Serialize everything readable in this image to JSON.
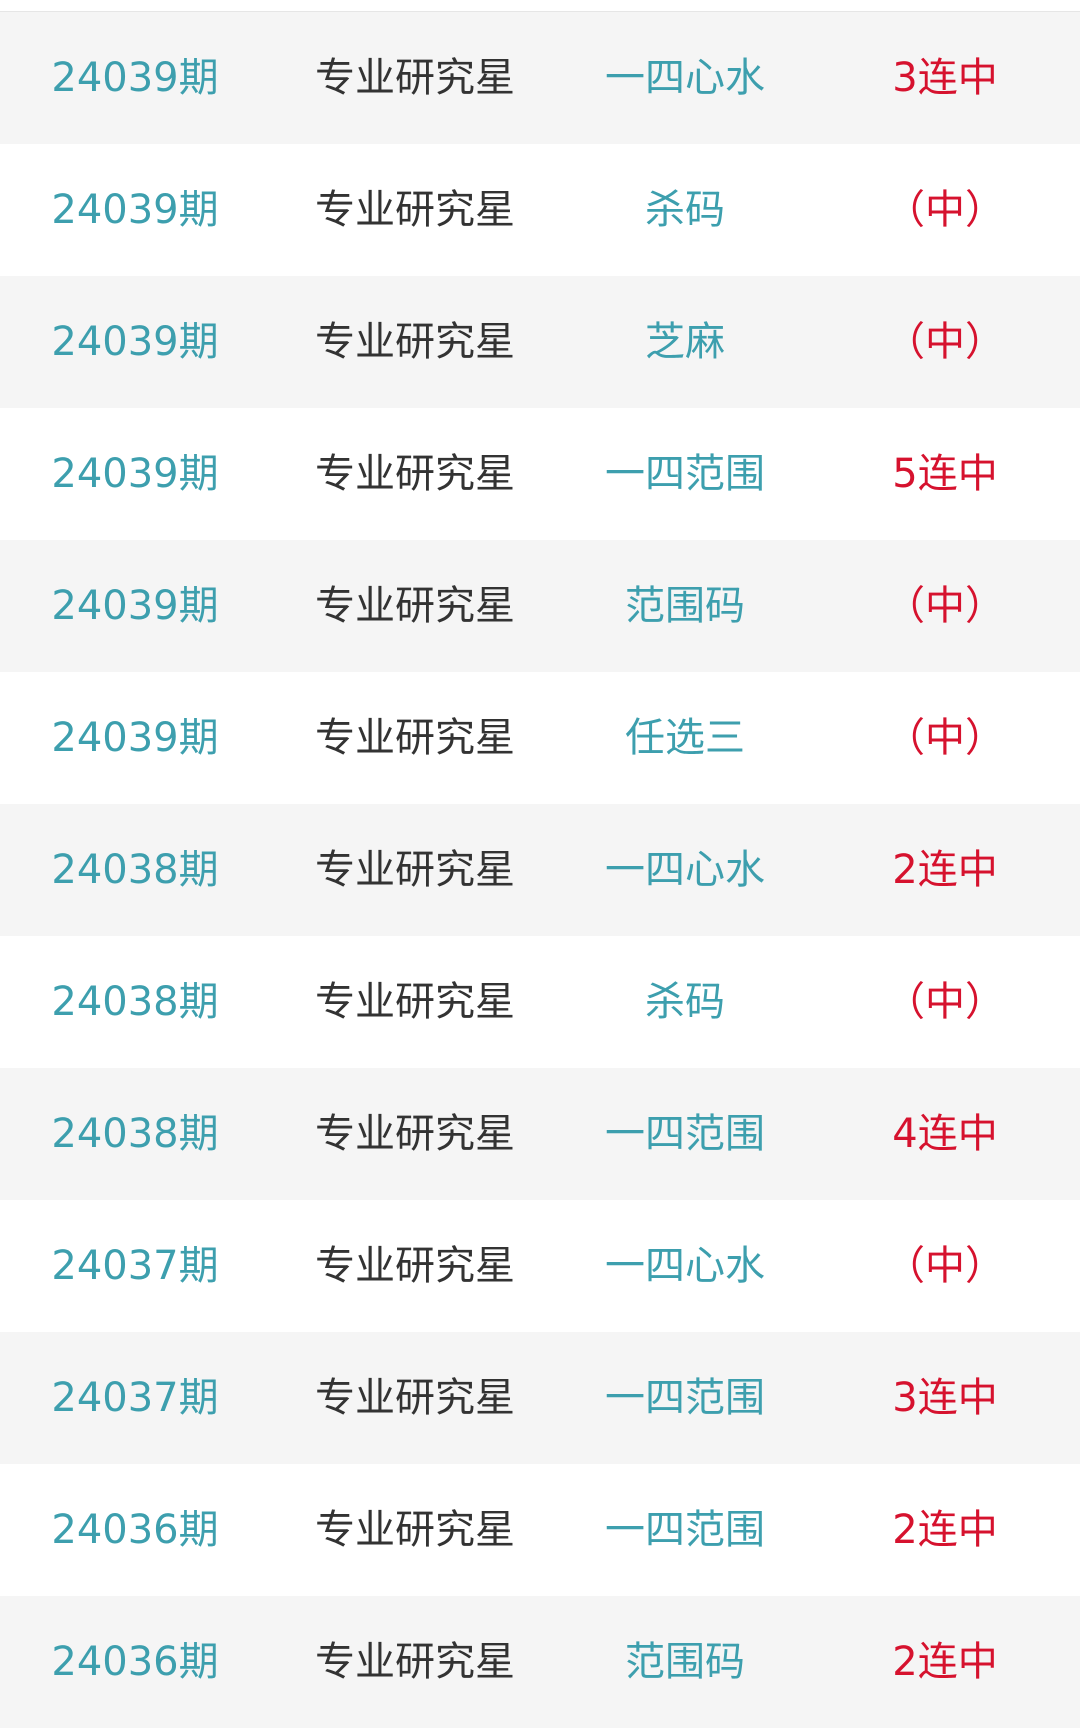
{
  "colors": {
    "issue": "#3d9fae",
    "author": "#333333",
    "category": "#3d9fae",
    "result": "#d6122e"
  },
  "rows": [
    {
      "issue": "24039期",
      "author": "专业研究星",
      "category": "一四心水",
      "result": "3连中"
    },
    {
      "issue": "24039期",
      "author": "专业研究星",
      "category": "杀码",
      "result": "（中）"
    },
    {
      "issue": "24039期",
      "author": "专业研究星",
      "category": "芝麻",
      "result": "（中）"
    },
    {
      "issue": "24039期",
      "author": "专业研究星",
      "category": "一四范围",
      "result": "5连中"
    },
    {
      "issue": "24039期",
      "author": "专业研究星",
      "category": "范围码",
      "result": "（中）"
    },
    {
      "issue": "24039期",
      "author": "专业研究星",
      "category": "任选三",
      "result": "（中）"
    },
    {
      "issue": "24038期",
      "author": "专业研究星",
      "category": "一四心水",
      "result": "2连中"
    },
    {
      "issue": "24038期",
      "author": "专业研究星",
      "category": "杀码",
      "result": "（中）"
    },
    {
      "issue": "24038期",
      "author": "专业研究星",
      "category": "一四范围",
      "result": "4连中"
    },
    {
      "issue": "24037期",
      "author": "专业研究星",
      "category": "一四心水",
      "result": "（中）"
    },
    {
      "issue": "24037期",
      "author": "专业研究星",
      "category": "一四范围",
      "result": "3连中"
    },
    {
      "issue": "24036期",
      "author": "专业研究星",
      "category": "一四范围",
      "result": "2连中"
    },
    {
      "issue": "24036期",
      "author": "专业研究星",
      "category": "范围码",
      "result": "2连中"
    }
  ]
}
